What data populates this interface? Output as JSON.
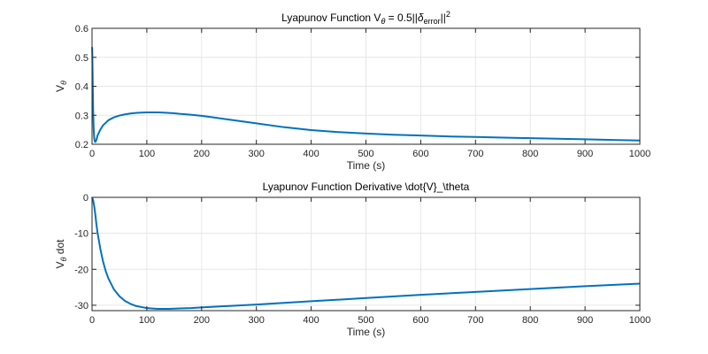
{
  "figure": {
    "background": "#ffffff"
  },
  "chart_data": [
    {
      "type": "line",
      "title": {
        "main": "Lyapunov Function V",
        "sub1": "θ",
        "mid1": " = 0.5||",
        "sym": "δ",
        "sub2": "error",
        "mid2": "||",
        "sup": "2"
      },
      "xlabel": "Time (s)",
      "ylabel": {
        "main": "V",
        "sub": "θ"
      },
      "xlim": [
        0,
        1000
      ],
      "ylim": [
        0.2,
        0.6
      ],
      "xticks": [
        0,
        100,
        200,
        300,
        400,
        500,
        600,
        700,
        800,
        900,
        1000
      ],
      "yticks": [
        0.2,
        0.3,
        0.4,
        0.5,
        0.6
      ],
      "ytick_labels": [
        "0.2",
        "0.3",
        "0.4",
        "0.5",
        "0.6"
      ],
      "grid": true,
      "color": "#0072BD",
      "series": [
        {
          "x": [
            0,
            0.3,
            0.6,
            1,
            1.5,
            2,
            3,
            4,
            5,
            6,
            8,
            10,
            15,
            20,
            30,
            40,
            50,
            60,
            70,
            80,
            90,
            100,
            110,
            120,
            130,
            140,
            150,
            160,
            180,
            200,
            220,
            250,
            300,
            350,
            400,
            450,
            500,
            550,
            600,
            650,
            700,
            750,
            800,
            850,
            900,
            950,
            1000
          ],
          "y": [
            0.535,
            0.53,
            0.5,
            0.45,
            0.38,
            0.32,
            0.25,
            0.22,
            0.21,
            0.208,
            0.215,
            0.23,
            0.25,
            0.265,
            0.283,
            0.293,
            0.299,
            0.303,
            0.306,
            0.308,
            0.309,
            0.31,
            0.31,
            0.31,
            0.309,
            0.308,
            0.307,
            0.305,
            0.302,
            0.298,
            0.293,
            0.285,
            0.272,
            0.259,
            0.249,
            0.242,
            0.237,
            0.233,
            0.23,
            0.227,
            0.225,
            0.223,
            0.221,
            0.219,
            0.217,
            0.215,
            0.213
          ]
        }
      ]
    },
    {
      "type": "line",
      "title": {
        "main": "Lyapunov Function Derivative \\dot{V}_\\theta"
      },
      "xlabel": "Time (s)",
      "ylabel": {
        "main": "V",
        "sub": "θ",
        "suffix": " dot"
      },
      "xlim": [
        0,
        1000
      ],
      "ylim": [
        -31.5,
        0
      ],
      "xticks": [
        0,
        100,
        200,
        300,
        400,
        500,
        600,
        700,
        800,
        900,
        1000
      ],
      "yticks": [
        -30,
        -20,
        -10,
        0
      ],
      "ytick_labels": [
        "-30",
        "-20",
        "-10",
        "0"
      ],
      "grid": true,
      "color": "#0072BD",
      "series": [
        {
          "x": [
            0,
            2,
            4,
            6,
            8,
            10,
            15,
            20,
            25,
            30,
            40,
            50,
            60,
            70,
            80,
            90,
            100,
            120,
            140,
            160,
            180,
            200,
            250,
            300,
            400,
            500,
            600,
            700,
            800,
            900,
            1000
          ],
          "y": [
            0,
            -0.8,
            -2.5,
            -4.8,
            -7.5,
            -9.8,
            -14.2,
            -17.8,
            -20.5,
            -22.6,
            -25.6,
            -27.5,
            -28.8,
            -29.6,
            -30.2,
            -30.5,
            -30.8,
            -31.0,
            -31.0,
            -30.9,
            -30.8,
            -30.6,
            -30.2,
            -29.8,
            -28.9,
            -28.0,
            -27.1,
            -26.3,
            -25.5,
            -24.7,
            -24.0
          ]
        }
      ]
    }
  ]
}
